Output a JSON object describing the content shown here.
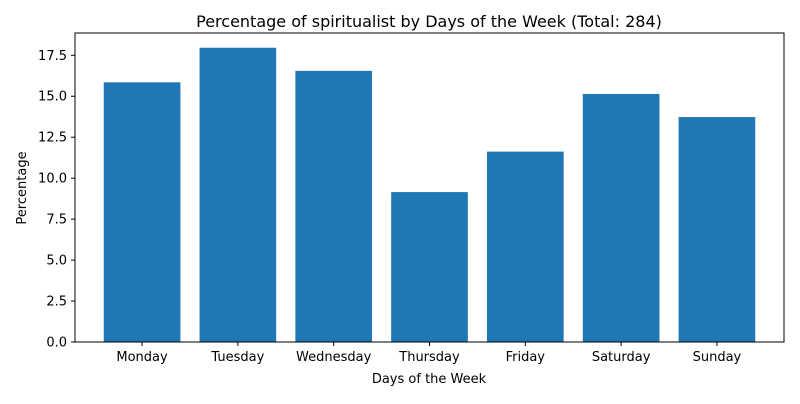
{
  "chart_data": {
    "type": "bar",
    "title": "Percentage of spiritualist by Days of the Week (Total: 284)",
    "xlabel": "Days of the Week",
    "ylabel": "Percentage",
    "categories": [
      "Monday",
      "Tuesday",
      "Wednesday",
      "Thursday",
      "Friday",
      "Saturday",
      "Sunday"
    ],
    "values": [
      15.85,
      17.96,
      16.55,
      9.15,
      11.62,
      15.14,
      13.73
    ],
    "ylim": [
      0,
      18.86
    ],
    "yticks": [
      "0.0",
      "2.5",
      "5.0",
      "7.5",
      "10.0",
      "12.5",
      "15.0",
      "17.5"
    ],
    "bar_color": "#1f77b4",
    "grid": false,
    "legend": false
  }
}
